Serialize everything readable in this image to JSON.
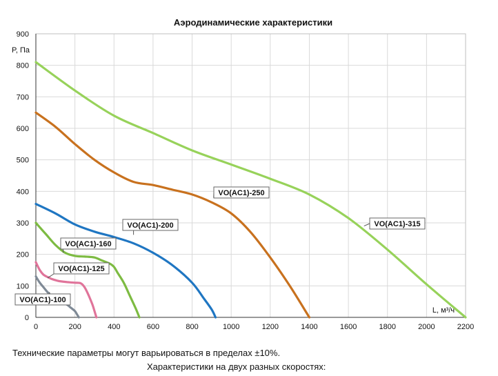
{
  "chart_data": {
    "type": "line",
    "title": "Аэродинамические характеристики",
    "ylabel": "P, Па",
    "xlabel": "L, м³/ч",
    "xlim": [
      0,
      2200
    ],
    "ylim": [
      0,
      900
    ],
    "xticks": [
      0,
      200,
      400,
      600,
      800,
      1000,
      1200,
      1400,
      1600,
      1800,
      2000,
      2200
    ],
    "yticks": [
      0,
      100,
      200,
      300,
      400,
      500,
      600,
      700,
      800,
      900
    ],
    "grid": true,
    "series": [
      {
        "name": "VO(AC1)-100",
        "color": "#7f8a96",
        "points": [
          [
            0,
            130
          ],
          [
            20,
            110
          ],
          [
            40,
            95
          ],
          [
            60,
            80
          ],
          [
            80,
            68
          ],
          [
            100,
            60
          ],
          [
            120,
            50
          ],
          [
            140,
            45
          ],
          [
            160,
            40
          ],
          [
            180,
            30
          ],
          [
            200,
            20
          ],
          [
            210,
            10
          ],
          [
            220,
            0
          ]
        ]
      },
      {
        "name": "VO(AC1)-125",
        "color": "#e0749a",
        "points": [
          [
            0,
            175
          ],
          [
            20,
            150
          ],
          [
            40,
            135
          ],
          [
            60,
            128
          ],
          [
            80,
            122
          ],
          [
            100,
            118
          ],
          [
            120,
            115
          ],
          [
            160,
            112
          ],
          [
            200,
            110
          ],
          [
            230,
            108
          ],
          [
            250,
            95
          ],
          [
            270,
            70
          ],
          [
            290,
            40
          ],
          [
            300,
            20
          ],
          [
            310,
            0
          ]
        ]
      },
      {
        "name": "VO(AC1)-160",
        "color": "#7dbb42",
        "points": [
          [
            0,
            300
          ],
          [
            50,
            265
          ],
          [
            100,
            230
          ],
          [
            150,
            205
          ],
          [
            200,
            195
          ],
          [
            250,
            193
          ],
          [
            300,
            190
          ],
          [
            340,
            180
          ],
          [
            380,
            170
          ],
          [
            400,
            160
          ],
          [
            420,
            140
          ],
          [
            450,
            110
          ],
          [
            480,
            70
          ],
          [
            510,
            30
          ],
          [
            530,
            0
          ]
        ]
      },
      {
        "name": "VO(AC1)-200",
        "color": "#1f76c2",
        "points": [
          [
            0,
            360
          ],
          [
            100,
            330
          ],
          [
            200,
            295
          ],
          [
            300,
            272
          ],
          [
            400,
            255
          ],
          [
            500,
            235
          ],
          [
            600,
            205
          ],
          [
            700,
            165
          ],
          [
            800,
            110
          ],
          [
            860,
            60
          ],
          [
            900,
            25
          ],
          [
            920,
            0
          ]
        ]
      },
      {
        "name": "VO(AC1)-250",
        "color": "#c8711e",
        "points": [
          [
            0,
            650
          ],
          [
            100,
            605
          ],
          [
            200,
            550
          ],
          [
            300,
            500
          ],
          [
            400,
            460
          ],
          [
            500,
            430
          ],
          [
            600,
            420
          ],
          [
            700,
            405
          ],
          [
            800,
            390
          ],
          [
            900,
            365
          ],
          [
            1000,
            330
          ],
          [
            1100,
            270
          ],
          [
            1200,
            190
          ],
          [
            1300,
            100
          ],
          [
            1400,
            0
          ]
        ]
      },
      {
        "name": "VO(AC1)-315",
        "color": "#97d25a",
        "points": [
          [
            0,
            810
          ],
          [
            200,
            720
          ],
          [
            400,
            640
          ],
          [
            600,
            585
          ],
          [
            800,
            530
          ],
          [
            1000,
            485
          ],
          [
            1200,
            440
          ],
          [
            1400,
            390
          ],
          [
            1600,
            315
          ],
          [
            1800,
            215
          ],
          [
            2000,
            105
          ],
          [
            2200,
            0
          ]
        ]
      }
    ],
    "callouts": [
      {
        "series": "VO(AC1)-100",
        "label": "VO(AC1)-100",
        "anchor": [
          70,
          80
        ]
      },
      {
        "series": "VO(AC1)-125",
        "label": "VO(AC1)-125",
        "anchor": [
          60,
          125
        ]
      },
      {
        "series": "VO(AC1)-160",
        "label": "VO(AC1)-160",
        "anchor": [
          140,
          205
        ]
      },
      {
        "series": "VO(AC1)-200",
        "label": "VO(AC1)-200",
        "anchor": [
          500,
          262
        ]
      },
      {
        "series": "VO(AC1)-250",
        "label": "VO(AC1)-250",
        "anchor": [
          910,
          380
        ]
      },
      {
        "series": "VO(AC1)-315",
        "label": "VO(AC1)-315",
        "anchor": [
          1680,
          290
        ]
      }
    ]
  },
  "notes": {
    "line1": "Технические параметры могут варьироваться в пределах ±10%.",
    "line2": "Характеристики на двух разных скоростях:"
  }
}
